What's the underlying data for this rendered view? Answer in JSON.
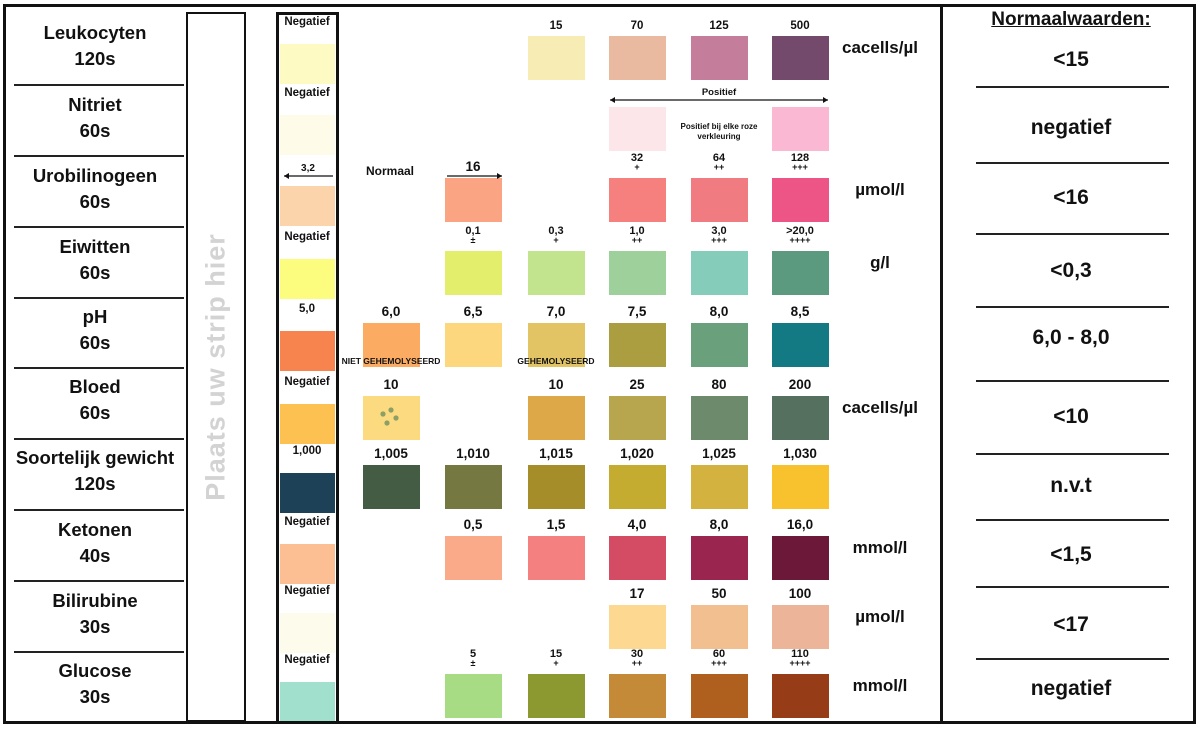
{
  "strip_label": "Plaats uw strip hier",
  "normal_title": "Normaalwaarden:",
  "note_positive_bracket": "Positief",
  "note_positive": "Positief bij elke roze verkleuring",
  "rows": [
    {
      "name": "Leukocyten",
      "time": "120s",
      "unit": "cacells/µl",
      "normal": "<15",
      "pads": [
        {
          "col": 0,
          "label": "Negatief",
          "color": "#fdfbc3"
        },
        {
          "col": 3,
          "label": "15",
          "color": "#f7ecb3"
        },
        {
          "col": 4,
          "label": "70",
          "color": "#eabaa0"
        },
        {
          "col": 5,
          "label": "125",
          "color": "#c47e9c"
        },
        {
          "col": 6,
          "label": "500",
          "color": "#744a6c"
        }
      ]
    },
    {
      "name": "Nitriet",
      "time": "60s",
      "unit": "",
      "normal": "negatief",
      "pads": [
        {
          "col": 0,
          "label": "Negatief",
          "color": "#fefbe8"
        },
        {
          "col": 4,
          "label": "",
          "color": "#fde6ea"
        },
        {
          "col": 6,
          "label": "",
          "color": "#fab8d2"
        }
      ]
    },
    {
      "name": "Urobilinogeen",
      "time": "60s",
      "unit": "µmol/l",
      "normal": "<16",
      "pads": [
        {
          "col": 0,
          "label": "3,2",
          "color": "#fbd4ac"
        },
        {
          "col": 2,
          "label": "16",
          "color": "#fba484"
        },
        {
          "col": 4,
          "label": "32",
          "sub": "+",
          "color": "#f5807e"
        },
        {
          "col": 5,
          "label": "64",
          "sub": "++",
          "color": "#f07c82"
        },
        {
          "col": 6,
          "label": "128",
          "sub": "+++",
          "color": "#ee5587"
        }
      ],
      "extra_label": "Normaal"
    },
    {
      "name": "Eiwitten",
      "time": "60s",
      "unit": "g/l",
      "normal": "<0,3",
      "pads": [
        {
          "col": 0,
          "label": "Negatief",
          "color": "#fcfc7e"
        },
        {
          "col": 2,
          "label": "0,1",
          "sub": "±",
          "color": "#e2ee6c"
        },
        {
          "col": 3,
          "label": "0,3",
          "sub": "+",
          "color": "#c2e48e"
        },
        {
          "col": 4,
          "label": "1,0",
          "sub": "++",
          "color": "#9ed09b"
        },
        {
          "col": 5,
          "label": "3,0",
          "sub": "+++",
          "color": "#86ccba"
        },
        {
          "col": 6,
          "label": ">20,0",
          "sub": "++++",
          "color": "#5c9a80"
        }
      ]
    },
    {
      "name": "pH",
      "time": "60s",
      "unit": "",
      "normal": "6,0 - 8,0",
      "pads": [
        {
          "col": 0,
          "label": "5,0",
          "color": "#f7834f"
        },
        {
          "col": 1,
          "label": "6,0",
          "color": "#fcac62"
        },
        {
          "col": 2,
          "label": "6,5",
          "color": "#fcd77e"
        },
        {
          "col": 3,
          "label": "7,0",
          "color": "#e2c464"
        },
        {
          "col": 4,
          "label": "7,5",
          "color": "#ab9e40"
        },
        {
          "col": 5,
          "label": "8,0",
          "color": "#6aa07c"
        },
        {
          "col": 6,
          "label": "8,5",
          "color": "#137a84"
        }
      ]
    },
    {
      "name": "Bloed",
      "time": "60s",
      "unit": "cacells/µl",
      "normal": "<10",
      "pads": [
        {
          "col": 0,
          "label": "Negatief",
          "color": "#fcc150"
        },
        {
          "col": 1,
          "label": "10",
          "top": "NIET GEHEMOLYSEERD",
          "color": "#fcda80",
          "dots": true
        },
        {
          "col": 3,
          "label": "10",
          "top": "GEHEMOLYSEERD",
          "color": "#dda848"
        },
        {
          "col": 4,
          "label": "25",
          "color": "#b8a64e"
        },
        {
          "col": 5,
          "label": "80",
          "color": "#6e8a6c"
        },
        {
          "col": 6,
          "label": "200",
          "color": "#567060"
        }
      ]
    },
    {
      "name": "Soortelijk gewicht",
      "time": "120s",
      "unit": "",
      "normal": "n.v.t",
      "pads": [
        {
          "col": 0,
          "label": "1,000",
          "color": "#1d4258"
        },
        {
          "col": 1,
          "label": "1,005",
          "color": "#445c44"
        },
        {
          "col": 2,
          "label": "1,010",
          "color": "#757840"
        },
        {
          "col": 3,
          "label": "1,015",
          "color": "#a58e2a"
        },
        {
          "col": 4,
          "label": "1,020",
          "color": "#c3ac30"
        },
        {
          "col": 5,
          "label": "1,025",
          "color": "#d4b240"
        },
        {
          "col": 6,
          "label": "1,030",
          "color": "#f7c22e"
        }
      ]
    },
    {
      "name": "Ketonen",
      "time": "40s",
      "unit": "mmol/l",
      "normal": "<1,5",
      "pads": [
        {
          "col": 0,
          "label": "Negatief",
          "color": "#fcbf94"
        },
        {
          "col": 2,
          "label": "0,5",
          "color": "#faaa88"
        },
        {
          "col": 3,
          "label": "1,5",
          "color": "#f48080"
        },
        {
          "col": 4,
          "label": "4,0",
          "color": "#d44c64"
        },
        {
          "col": 5,
          "label": "8,0",
          "color": "#9a2650"
        },
        {
          "col": 6,
          "label": "16,0",
          "color": "#6c1838"
        }
      ]
    },
    {
      "name": "Bilirubine",
      "time": "30s",
      "unit": "µmol/l",
      "normal": "<17",
      "pads": [
        {
          "col": 0,
          "label": "Negatief",
          "color": "#fdfcec"
        },
        {
          "col": 4,
          "label": "17",
          "color": "#fcd890"
        },
        {
          "col": 5,
          "label": "50",
          "color": "#f2c090"
        },
        {
          "col": 6,
          "label": "100",
          "color": "#ecb498"
        }
      ]
    },
    {
      "name": "Glucose",
      "time": "30s",
      "unit": "mmol/l",
      "normal": "negatief",
      "pads": [
        {
          "col": 0,
          "label": "Negatief",
          "color": "#a0e0cc"
        },
        {
          "col": 2,
          "label": "5",
          "sub": "±",
          "color": "#a8dc84"
        },
        {
          "col": 3,
          "label": "15",
          "sub": "+",
          "color": "#8c9830"
        },
        {
          "col": 4,
          "label": "30",
          "sub": "++",
          "color": "#c48a38"
        },
        {
          "col": 5,
          "label": "60",
          "sub": "+++",
          "color": "#b0601e"
        },
        {
          "col": 6,
          "label": "110",
          "sub": "++++",
          "color": "#963c16"
        }
      ]
    }
  ]
}
